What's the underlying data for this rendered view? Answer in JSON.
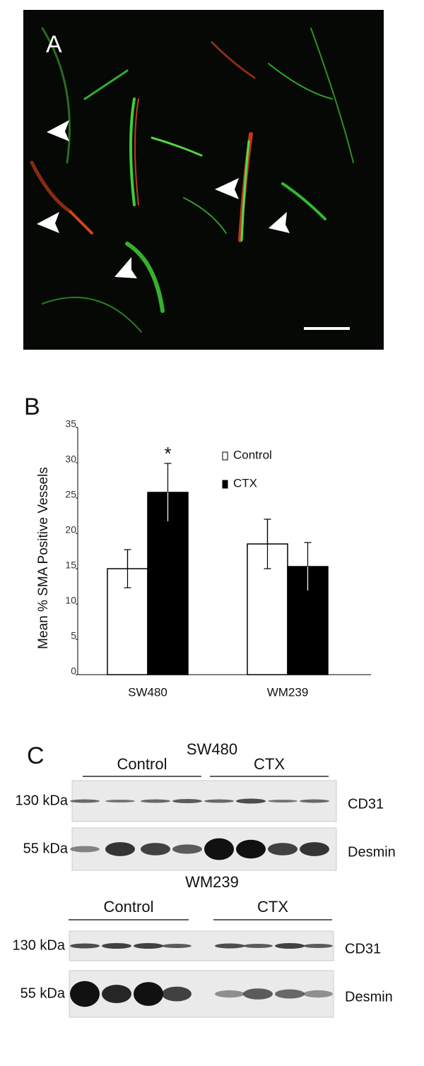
{
  "panel_a": {
    "label": "A"
  },
  "chart_data": {
    "type": "bar",
    "label": "B",
    "ylabel": "Mean % SMA  Positive Vessels",
    "categories": [
      "SW480",
      "WM239"
    ],
    "series": [
      {
        "name": "Control",
        "color": "#ffffff",
        "values": [
          15,
          18.5
        ],
        "errors": [
          2.7,
          3.5
        ]
      },
      {
        "name": "CTX",
        "color": "#000000",
        "values": [
          25.8,
          15.3
        ],
        "errors": [
          4.1,
          3.4
        ]
      }
    ],
    "annotations": [
      {
        "text": "*",
        "series": 1,
        "category": 0
      }
    ],
    "ylim": [
      0,
      35
    ],
    "yticks": [
      0,
      5,
      10,
      15,
      20,
      25,
      30,
      35
    ]
  },
  "panel_c": {
    "label": "C",
    "blots": [
      {
        "title": "SW480",
        "groups": [
          "Control",
          "CTX"
        ],
        "rows": [
          {
            "size": "130 kDa",
            "protein": "CD31"
          },
          {
            "size": "55 kDa",
            "protein": "Desmin"
          }
        ]
      },
      {
        "title": "WM239",
        "groups": [
          "Control",
          "CTX"
        ],
        "rows": [
          {
            "size": "130 kDa",
            "protein": "CD31"
          },
          {
            "size": "55 kDa",
            "protein": "Desmin"
          }
        ]
      }
    ]
  }
}
